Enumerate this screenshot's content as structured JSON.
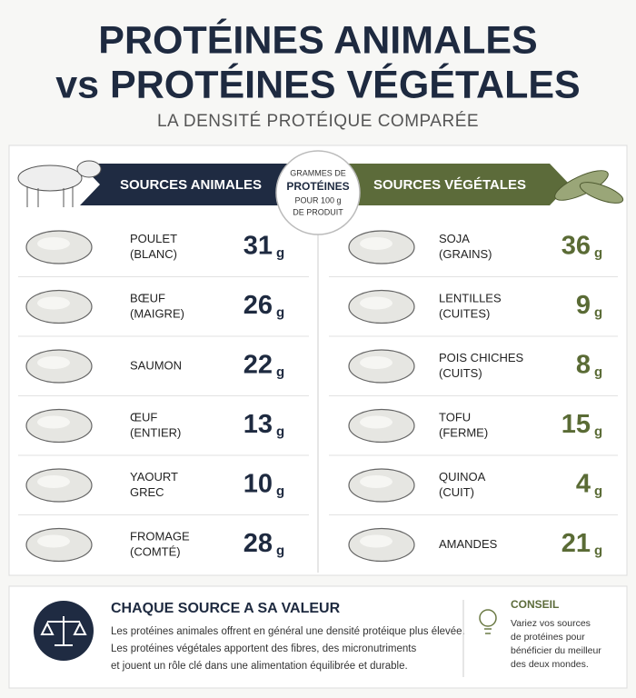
{
  "title_lines": [
    "PROTÉINES ANIMALES",
    "vs PROTÉINES VÉGÉTALES"
  ],
  "subtitle": "LA DENSITÉ PROTÉIQUE COMPARÉE",
  "unit": "g",
  "center_label": [
    "GRAMMES DE",
    "PROTÉINES",
    "POUR 100 g",
    "DE PRODUIT"
  ],
  "animal": {
    "heading": "SOURCES ANIMALES",
    "items": [
      {
        "name_lines": [
          "POULET",
          "(BLANC)"
        ],
        "protein": 31
      },
      {
        "name_lines": [
          "BŒUF",
          "(MAIGRE)"
        ],
        "protein": 26
      },
      {
        "name_lines": [
          "SAUMON"
        ],
        "protein": 22
      },
      {
        "name_lines": [
          "ŒUF",
          "(ENTIER)"
        ],
        "protein": 13
      },
      {
        "name_lines": [
          "YAOURT",
          "GREC"
        ],
        "protein": 10
      },
      {
        "name_lines": [
          "FROMAGE",
          "(COMTÉ)"
        ],
        "protein": 28
      }
    ]
  },
  "vegetal": {
    "heading": "SOURCES VÉGÉTALES",
    "items": [
      {
        "name_lines": [
          "SOJA",
          "(GRAINS)"
        ],
        "protein": 36
      },
      {
        "name_lines": [
          "LENTILLES",
          "(CUITES)"
        ],
        "protein": 9
      },
      {
        "name_lines": [
          "POIS CHICHES",
          "(CUITS)"
        ],
        "protein": 8
      },
      {
        "name_lines": [
          "TOFU",
          "(FERME)"
        ],
        "protein": 15
      },
      {
        "name_lines": [
          "QUINOA",
          "(CUIT)"
        ],
        "protein": 4
      },
      {
        "name_lines": [
          "AMANDES"
        ],
        "protein": 21
      }
    ]
  },
  "footer": {
    "title": "CHAQUE SOURCE A SA VALEUR",
    "body_lines": [
      "Les protéines animales offrent en général une densité protéique plus élevée.",
      "Les protéines végétales apportent des fibres, des micronutriments",
      "et jouent un rôle clé dans une alimentation équilibrée et durable."
    ],
    "tip_title": "CONSEIL",
    "tip_lines": [
      "Variez vos sources",
      "de protéines pour",
      "bénéficier du meilleur",
      "des deux mondes."
    ]
  }
}
